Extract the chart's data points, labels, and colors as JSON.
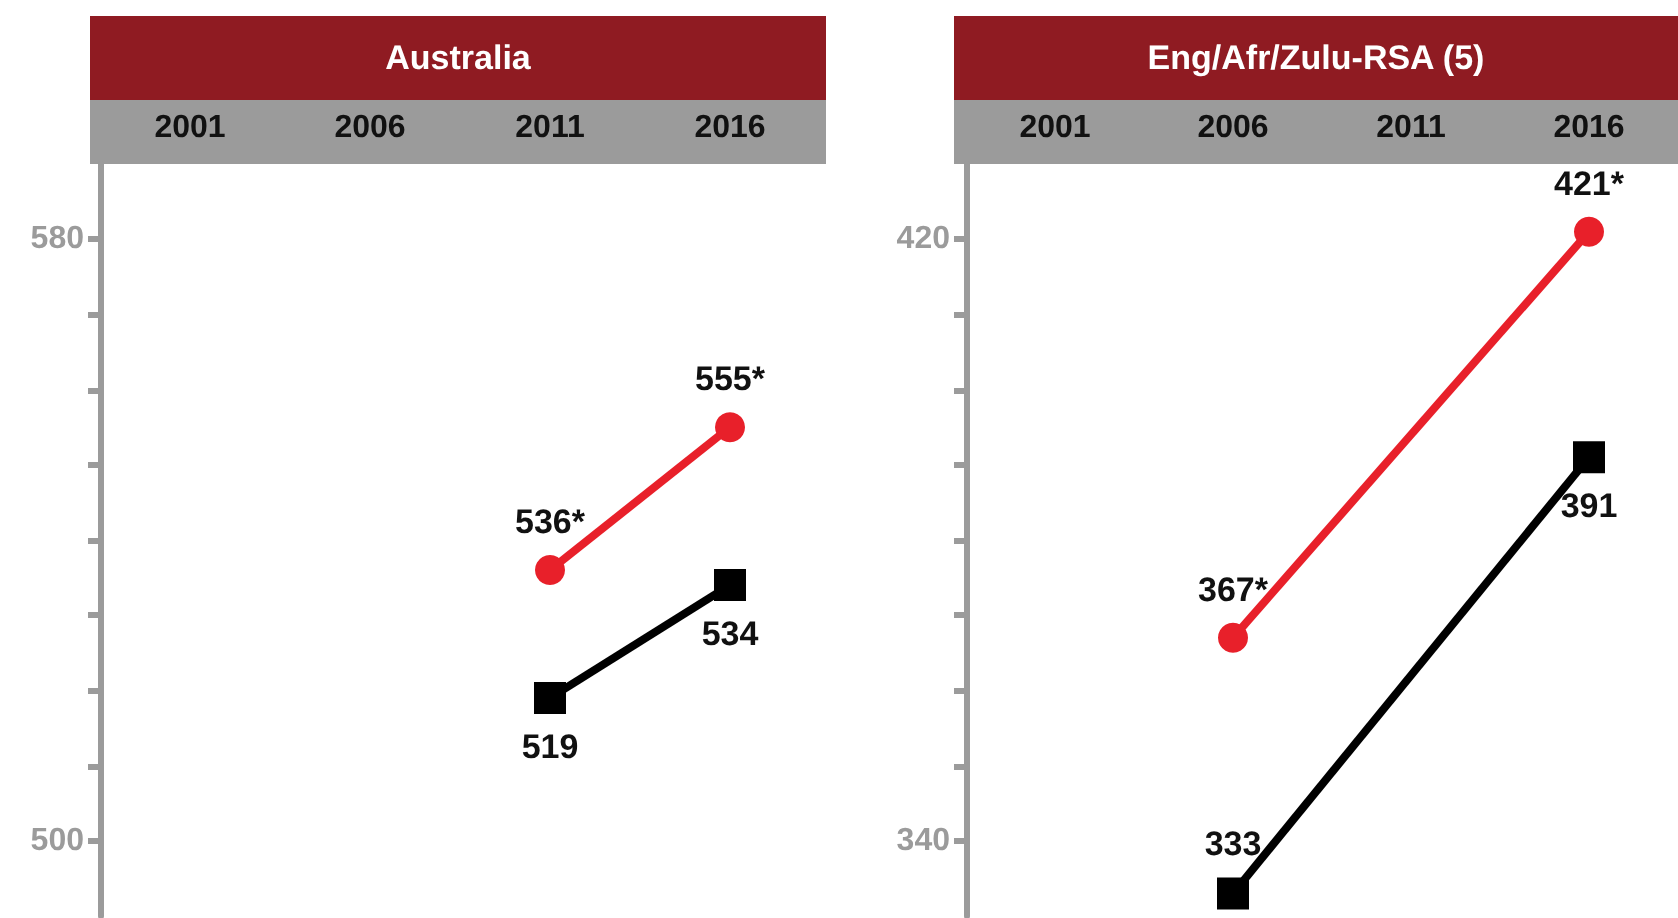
{
  "chart_data": [
    {
      "type": "line",
      "title": "Australia",
      "categories": [
        "2001",
        "2006",
        "2011",
        "2016"
      ],
      "ylim": [
        490,
        590
      ],
      "yticks": [
        500,
        {
          "value": 510,
          "label": null
        },
        {
          "value": 520,
          "label": null
        },
        {
          "value": 530,
          "label": null
        },
        {
          "value": 540,
          "label": null
        },
        {
          "value": 550,
          "label": null
        },
        {
          "value": 560,
          "label": null
        },
        {
          "value": 570,
          "label": null
        },
        580
      ],
      "series": [
        {
          "color": "#e8202a",
          "marker": "circle",
          "values": [
            null,
            null,
            536,
            555
          ],
          "value_labels": [
            null,
            null,
            "536*",
            "555*"
          ]
        },
        {
          "color": "#000000",
          "marker": "square",
          "values": [
            null,
            null,
            519,
            534
          ],
          "value_labels": [
            null,
            null,
            "519",
            "534"
          ]
        }
      ]
    },
    {
      "type": "line",
      "title": "Eng/Afr/Zulu-RSA (5)",
      "categories": [
        "2001",
        "2006",
        "2011",
        "2016"
      ],
      "ylim": [
        330,
        430
      ],
      "yticks": [
        340,
        {
          "value": 350,
          "label": null
        },
        {
          "value": 360,
          "label": null
        },
        {
          "value": 370,
          "label": null
        },
        {
          "value": 380,
          "label": null
        },
        {
          "value": 390,
          "label": null
        },
        {
          "value": 400,
          "label": null
        },
        {
          "value": 410,
          "label": null
        },
        420
      ],
      "series": [
        {
          "color": "#e8202a",
          "marker": "circle",
          "values": [
            null,
            367,
            null,
            421
          ],
          "value_labels": [
            null,
            "367*",
            null,
            "421*"
          ]
        },
        {
          "color": "#000000",
          "marker": "square",
          "values": [
            null,
            333,
            null,
            391
          ],
          "value_labels": [
            null,
            "333",
            null,
            "391"
          ]
        }
      ]
    }
  ]
}
